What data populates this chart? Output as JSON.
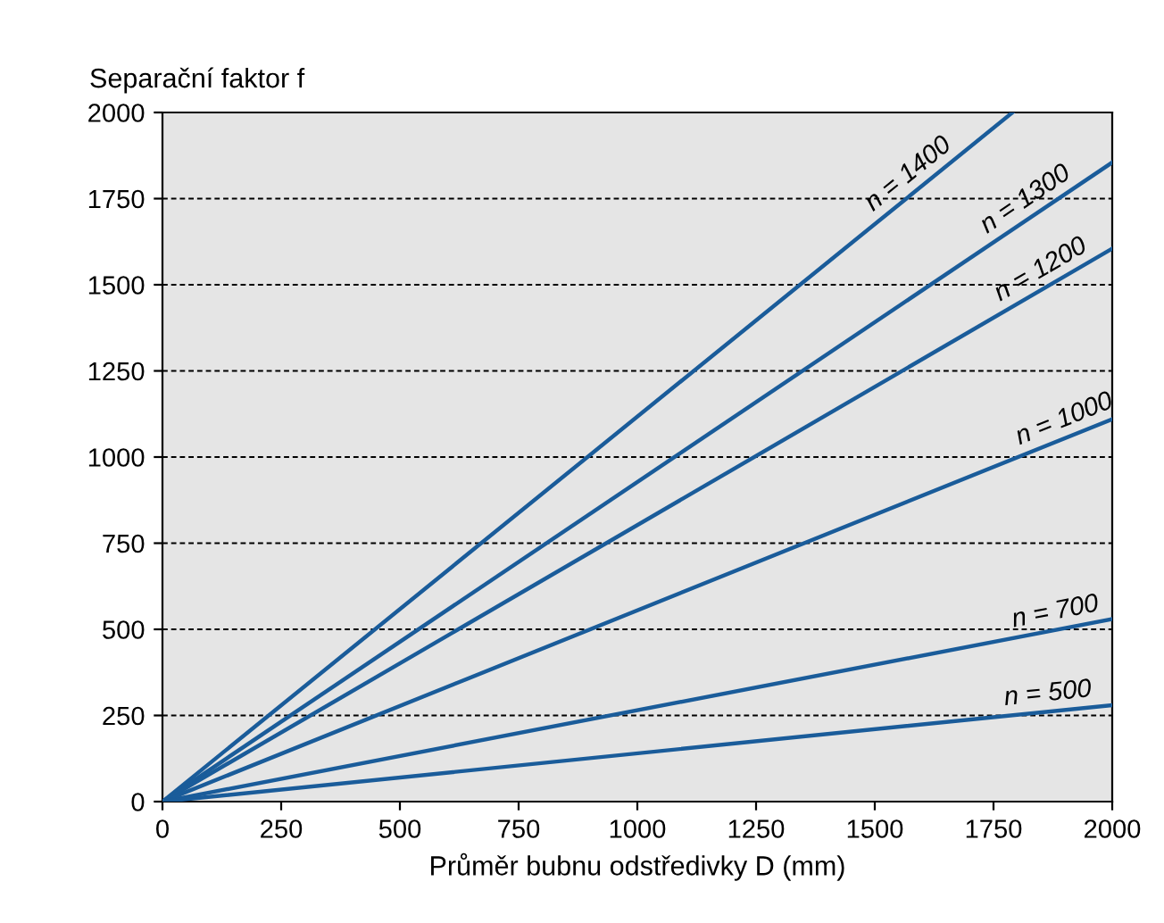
{
  "chart_data": {
    "type": "line",
    "ylabel": "Separační faktor f",
    "xlabel": "Průměr bubnu odstředivky D (mm)",
    "xlim": [
      0,
      2000
    ],
    "ylim": [
      0,
      2000
    ],
    "xticks": [
      0,
      250,
      500,
      750,
      1000,
      1250,
      1500,
      1750,
      2000
    ],
    "yticks": [
      0,
      250,
      500,
      750,
      1000,
      1250,
      1500,
      1750,
      2000
    ],
    "grid": "y",
    "line_style": "solid",
    "marker": "none",
    "series": [
      {
        "color": "#1a5c9a",
        "x": [
          0,
          1790
        ],
        "values": [
          0,
          2000
        ]
      },
      {
        "color": "#1a5c9a",
        "x": [
          0,
          2000
        ],
        "values": [
          0,
          1855
        ]
      },
      {
        "color": "#1a5c9a",
        "x": [
          0,
          2000
        ],
        "values": [
          0,
          1605
        ]
      },
      {
        "color": "#1a5c9a",
        "x": [
          0,
          2000
        ],
        "values": [
          0,
          1110
        ]
      },
      {
        "color": "#1a5c9a",
        "x": [
          0,
          2000
        ],
        "values": [
          0,
          530
        ]
      },
      {
        "color": "#1a5c9a",
        "x": [
          0,
          2000
        ],
        "values": [
          0,
          280
        ]
      }
    ],
    "annotations": [
      {
        "text": "n = 1400",
        "x": 1594,
        "y": 1781
      },
      {
        "text": "n = 1300",
        "x": 1838,
        "y": 1705
      },
      {
        "text": "n = 1200",
        "x": 1868,
        "y": 1499
      },
      {
        "text": "n = 1000",
        "x": 1913,
        "y": 1062
      },
      {
        "text": "n = 700",
        "x": 1887,
        "y": 500
      },
      {
        "text": "n = 500",
        "x": 1868,
        "y": 262
      }
    ]
  }
}
